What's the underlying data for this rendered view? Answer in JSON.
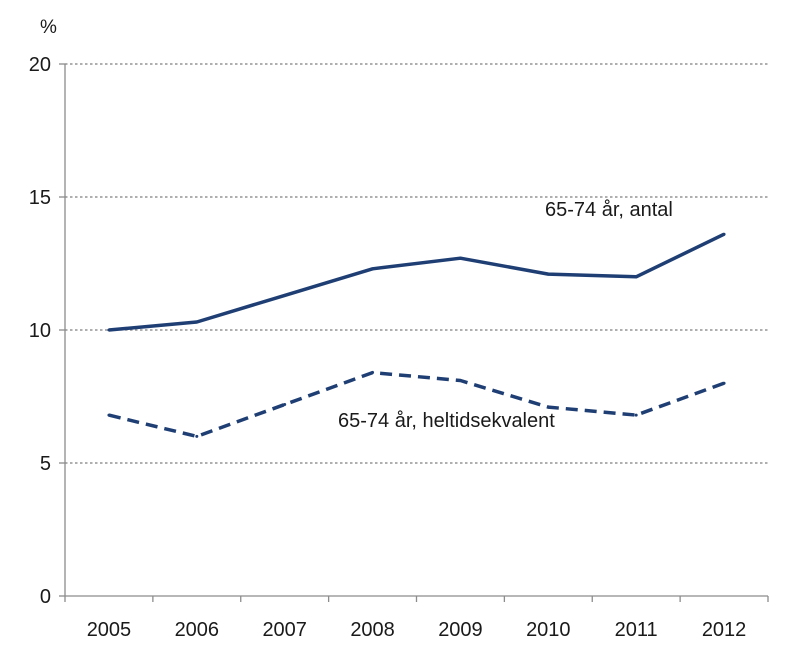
{
  "chart_data": {
    "type": "line",
    "y_unit": "%",
    "x": [
      "2005",
      "2006",
      "2007",
      "2008",
      "2009",
      "2010",
      "2011",
      "2012"
    ],
    "ylim": [
      0,
      20
    ],
    "yticks": [
      "0",
      "5",
      "10",
      "15",
      "20"
    ],
    "grid": true,
    "series": [
      {
        "name": "65-74 år, antal",
        "values": [
          10.0,
          10.3,
          11.3,
          12.3,
          12.7,
          12.1,
          12.0,
          13.6
        ],
        "color": "#1f3f74",
        "line_style": "solid"
      },
      {
        "name": "65-74 år, heltidsekvalent",
        "values": [
          6.8,
          6.0,
          7.2,
          8.4,
          8.1,
          7.1,
          6.8,
          8.0
        ],
        "color": "#1f3f74",
        "line_style": "dashed"
      }
    ]
  }
}
